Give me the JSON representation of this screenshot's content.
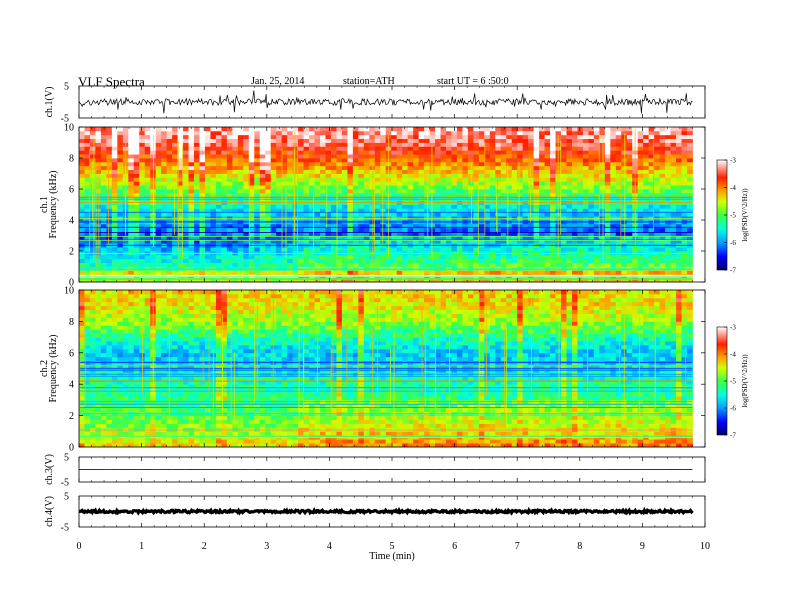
{
  "header": {
    "title": "VLF Spectra",
    "date": "Jan. 25, 2014",
    "station": "station=ATH",
    "start": "start UT = 6 :50:0"
  },
  "colorbar_label": "log(PSD(V^2/Hz))",
  "chart_data": [
    {
      "type": "line",
      "panel": "ch1-waveform",
      "ylabel": "ch.1(V)",
      "ylim": [
        -5,
        5
      ],
      "yticks": [
        "5",
        "-5"
      ],
      "x_range": [
        0,
        10
      ],
      "data_extent_min": 9.8,
      "trace_level": 0,
      "trace_amplitude": 1.0,
      "color": "#000000"
    },
    {
      "type": "heatmap",
      "panel": "ch1-spectrogram",
      "ylabel_top": "ch.1",
      "ylabel": "Frequency (kHz)",
      "ylim": [
        0,
        10
      ],
      "yticks": [
        "0",
        "2",
        "4",
        "6",
        "8",
        "10"
      ],
      "x_range": [
        0,
        10
      ],
      "data_extent_min": 9.8,
      "level_change_min": 3.5,
      "band_profile_kHz": [
        [
          0,
          -4.7
        ],
        [
          0.5,
          -4.3
        ],
        [
          1,
          -5.3
        ],
        [
          2,
          -5.8
        ],
        [
          3,
          -6.2
        ],
        [
          4,
          -5.9
        ],
        [
          5,
          -5.5
        ],
        [
          6,
          -4.9
        ],
        [
          7,
          -4.3
        ],
        [
          8,
          -3.8
        ],
        [
          9,
          -3.4
        ],
        [
          10,
          -3.2
        ]
      ],
      "colorbar": {
        "range": [
          -7,
          -3
        ],
        "ticks": [
          "-3",
          "-4",
          "-5",
          "-6",
          "-7"
        ]
      }
    },
    {
      "type": "heatmap",
      "panel": "ch2-spectrogram",
      "ylabel_top": "ch.2",
      "ylabel": "Frequency (kHz)",
      "ylim": [
        0,
        10
      ],
      "yticks": [
        "0",
        "2",
        "4",
        "6",
        "8",
        "10"
      ],
      "x_range": [
        0,
        10
      ],
      "data_extent_min": 9.8,
      "level_change_min": 3.5,
      "band_profile_kHz": [
        [
          0,
          -4.3
        ],
        [
          1,
          -4.7
        ],
        [
          2,
          -5.0
        ],
        [
          3,
          -5.2
        ],
        [
          4,
          -5.3
        ],
        [
          5,
          -5.6
        ],
        [
          6,
          -5.8
        ],
        [
          7,
          -5.3
        ],
        [
          8,
          -4.7
        ],
        [
          9,
          -4.4
        ],
        [
          10,
          -4.3
        ]
      ],
      "colorbar": {
        "range": [
          -7,
          -3
        ],
        "ticks": [
          "-3",
          "-4",
          "-5",
          "-6",
          "-7"
        ]
      }
    },
    {
      "type": "line",
      "panel": "ch3-waveform",
      "ylabel": "ch.3(V)",
      "ylim": [
        -5,
        5
      ],
      "yticks": [
        "5",
        "-5"
      ],
      "x_range": [
        0,
        10
      ],
      "data_extent_min": 9.8,
      "trace_level": 0,
      "trace_amplitude": 0.05,
      "color": "#000000"
    },
    {
      "type": "line",
      "panel": "ch4-waveform",
      "ylabel": "ch.4(V)",
      "ylim": [
        -5,
        5
      ],
      "yticks": [
        "5",
        "-5"
      ],
      "x_range": [
        0,
        10
      ],
      "data_extent_min": 9.8,
      "trace_level": 0,
      "trace_amplitude": 0.4,
      "color": "#000000"
    }
  ],
  "xaxis": {
    "label": "Time (min)",
    "range": [
      0,
      10
    ],
    "ticks": [
      "0",
      "1",
      "2",
      "3",
      "4",
      "5",
      "6",
      "7",
      "8",
      "9",
      "10"
    ]
  }
}
